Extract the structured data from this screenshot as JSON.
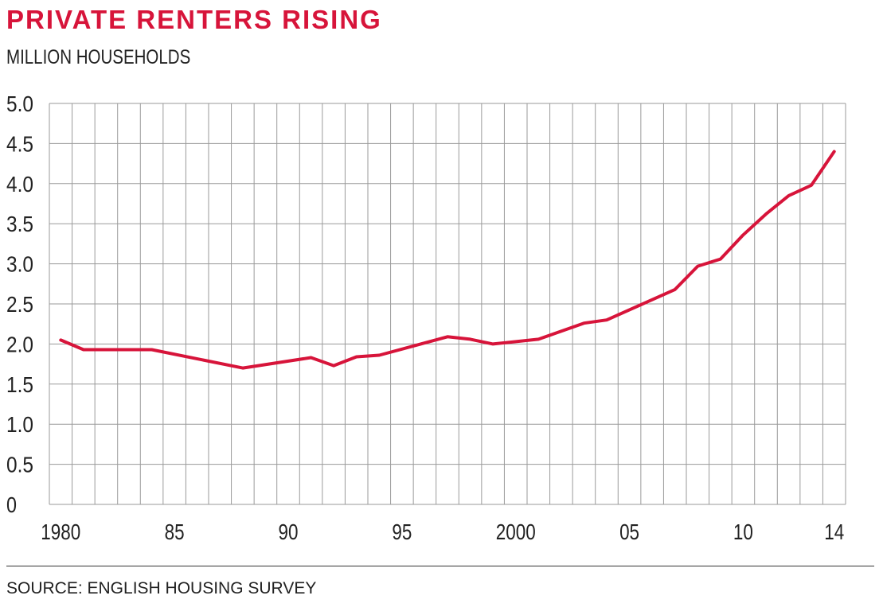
{
  "header": {
    "title": "PRIVATE RENTERS RISING",
    "subtitle": "MILLION HOUSEHOLDS"
  },
  "footer": {
    "source": "SOURCE: ENGLISH HOUSING SURVEY"
  },
  "colors": {
    "title": "#d7143a",
    "line": "#d7143a",
    "grid": "#9a9a9a"
  },
  "chart_data": {
    "type": "line",
    "title": "PRIVATE RENTERS RISING",
    "ylabel": "MILLION HOUSEHOLDS",
    "xlabel": "",
    "xlim": [
      1979.5,
      2014.5
    ],
    "ylim": [
      0,
      5.0
    ],
    "grid": true,
    "x_ticks": [
      {
        "value": 1980,
        "label": "1980"
      },
      {
        "value": 1985,
        "label": "85"
      },
      {
        "value": 1990,
        "label": "90"
      },
      {
        "value": 1995,
        "label": "95"
      },
      {
        "value": 2000,
        "label": "2000"
      },
      {
        "value": 2005,
        "label": "05"
      },
      {
        "value": 2010,
        "label": "10"
      },
      {
        "value": 2014,
        "label": "14"
      }
    ],
    "y_ticks": [
      {
        "value": 5.0,
        "label": "5.0"
      },
      {
        "value": 4.5,
        "label": "4.5"
      },
      {
        "value": 4.0,
        "label": "4.0"
      },
      {
        "value": 3.5,
        "label": "3.5"
      },
      {
        "value": 3.0,
        "label": "3.0"
      },
      {
        "value": 2.5,
        "label": "2.5"
      },
      {
        "value": 2.0,
        "label": "2.0"
      },
      {
        "value": 1.5,
        "label": "1.5"
      },
      {
        "value": 1.0,
        "label": "1.0"
      },
      {
        "value": 0.5,
        "label": "0.5"
      },
      {
        "value": 0,
        "label": "0"
      }
    ],
    "series": [
      {
        "x": [
          1980,
          1981,
          1984,
          1988,
          1991,
          1992,
          1993,
          1994,
          1997,
          1998,
          1999,
          2001,
          2003,
          2004,
          2007,
          2008,
          2009,
          2010,
          2011,
          2012,
          2013,
          2014
        ],
        "values": [
          2.05,
          1.93,
          1.93,
          1.7,
          1.83,
          1.73,
          1.84,
          1.86,
          2.09,
          2.06,
          2.0,
          2.06,
          2.26,
          2.3,
          2.68,
          2.97,
          3.06,
          3.36,
          3.62,
          3.85,
          3.98,
          4.4
        ]
      }
    ]
  }
}
